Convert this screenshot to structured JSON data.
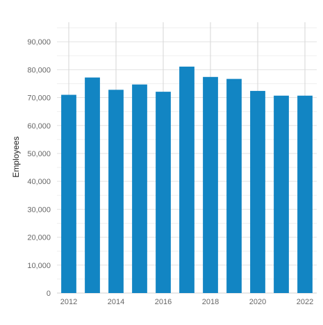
{
  "chart_data": {
    "type": "bar",
    "title": "",
    "xlabel": "",
    "ylabel": "Employees",
    "categories": [
      "2012",
      "2013",
      "2014",
      "2015",
      "2016",
      "2017",
      "2018",
      "2019",
      "2020",
      "2021",
      "2022"
    ],
    "values": [
      71000,
      77200,
      72800,
      74700,
      72100,
      81100,
      77400,
      76700,
      72400,
      70700,
      70700
    ],
    "ylim": [
      0,
      97000
    ],
    "y_ticks": [
      0,
      10000,
      20000,
      30000,
      40000,
      50000,
      60000,
      70000,
      80000,
      90000
    ],
    "y_tick_labels": [
      "0",
      "10,000",
      "20,000",
      "30,000",
      "40,000",
      "50,000",
      "60,000",
      "70,000",
      "80,000",
      "90,000"
    ],
    "x_tick_labels": [
      "2012",
      "2014",
      "2016",
      "2018",
      "2020",
      "2022"
    ],
    "bar_color": "#1285c3",
    "grid": true,
    "legend": "none"
  }
}
